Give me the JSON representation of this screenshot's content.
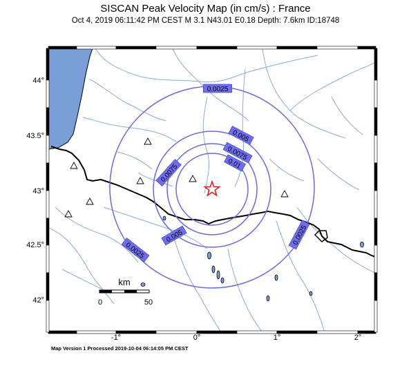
{
  "header": {
    "title": "SISCAN Peak Velocity Map (in cm/s) : France",
    "subtitle": "Oct  4, 2019 06:11:42 PM CEST   M 3.1   N43.01 E0.18   Depth: 7.6km   ID:18748"
  },
  "footer": {
    "text": "Map Version 1 Processed 2019-10-04 06:14:05 PM CEST"
  },
  "axes": {
    "lon_ticks": [
      "-1°",
      "0°",
      "1°",
      "2°"
    ],
    "lat_ticks": [
      "44°",
      "43.5°",
      "43°",
      "42.5°",
      "42°"
    ]
  },
  "contours": {
    "labels": [
      "0.0025",
      "0.005",
      "0.0075",
      "0.01",
      "0.0075",
      "0.005",
      "0.0025",
      "0.0025"
    ]
  },
  "scale_bar": {
    "unit": "km",
    "start": "0",
    "end": "50"
  },
  "colors": {
    "sea": "#7a9fd8",
    "contour": "#6a6ae0",
    "label_bg": "#6e6ef2",
    "border": "#000000",
    "rivers": "#8da9d9",
    "epicenter": "#e31b1b"
  },
  "icons": {
    "epicenter": "star-icon",
    "stations": "triangle-icon"
  }
}
